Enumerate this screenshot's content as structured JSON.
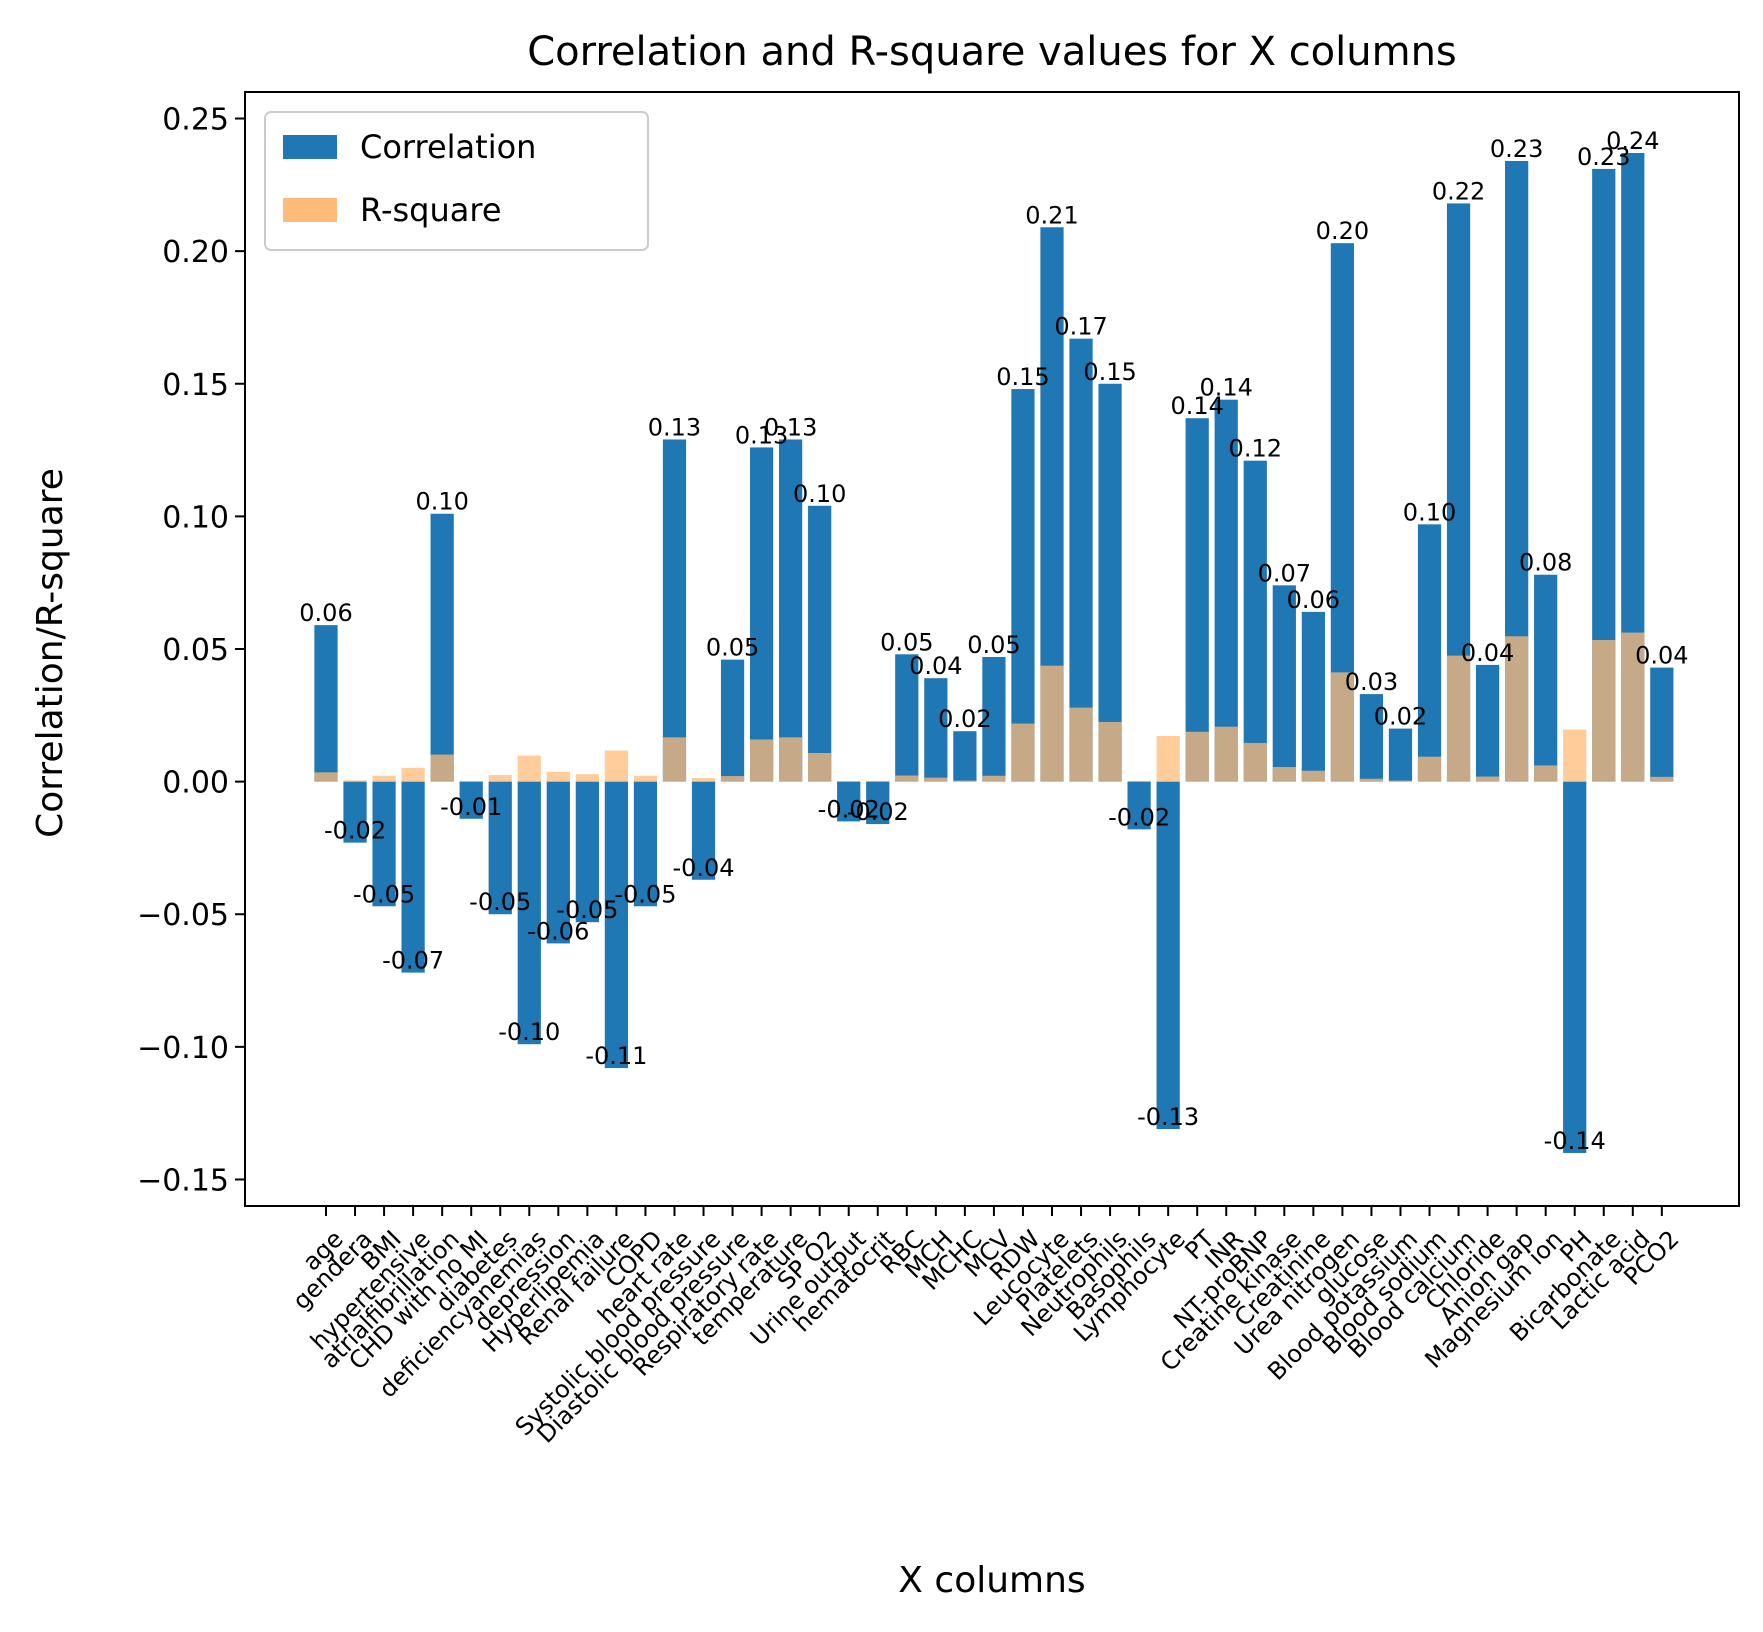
{
  "chart_data": {
    "type": "bar",
    "title": "Correlation and R-square values for X columns",
    "xlabel": "X columns",
    "ylabel": "Correlation/R-square",
    "ylim": [
      -0.16,
      0.26
    ],
    "yticks": [
      "0.25",
      "0.20",
      "0.15",
      "0.10",
      "0.05",
      "0.00",
      "−0.05",
      "−0.10",
      "−0.15"
    ],
    "ytick_values": [
      0.25,
      0.2,
      0.15,
      0.1,
      0.05,
      0.0,
      -0.05,
      -0.1,
      -0.15
    ],
    "legend_position": "top-left",
    "grid": false,
    "categories": [
      "age",
      "gendera",
      "BMI",
      "hypertensive",
      "atrialfibrillation",
      "CHD with no MI",
      "diabetes",
      "deficiencyanemias",
      "depression",
      "Hyperlipemia",
      "Renal failure",
      "COPD",
      "heart rate",
      "Systolic blood pressure",
      "Diastolic blood pressure",
      "Respiratory rate",
      "temperature",
      "SP O2",
      "Urine output",
      "hematocrit",
      "RBC",
      "MCH",
      "MCHC",
      "MCV",
      "RDW",
      "Leucocyte",
      "Platelets",
      "Neutrophils",
      "Basophils",
      "Lymphocyte",
      "PT",
      "INR",
      "NT-proBNP",
      "Creatine kinase",
      "Creatinine",
      "Urea nitrogen",
      "glucose",
      "Blood potassium",
      "Blood sodium",
      "Blood calcium",
      "Chloride",
      "Anion gap",
      "Magnesium ion",
      "PH",
      "Bicarbonate",
      "Lactic acid",
      "PCO2"
    ],
    "series": [
      {
        "name": "Correlation",
        "color": "#1f77b4",
        "values": [
          0.059,
          -0.023,
          -0.047,
          -0.072,
          0.101,
          -0.014,
          -0.05,
          -0.099,
          -0.061,
          -0.053,
          -0.108,
          -0.047,
          0.129,
          -0.037,
          0.046,
          0.126,
          0.129,
          0.104,
          -0.015,
          -0.016,
          0.048,
          0.039,
          0.019,
          0.047,
          0.148,
          0.209,
          0.167,
          0.15,
          -0.018,
          -0.131,
          0.137,
          0.144,
          0.121,
          0.074,
          0.064,
          0.203,
          0.033,
          0.02,
          0.097,
          0.218,
          0.044,
          0.234,
          0.078,
          -0.14,
          0.231,
          0.237,
          0.043
        ],
        "labels": [
          "0.06",
          "-0.02",
          "-0.05",
          "-0.07",
          "0.10",
          "-0.01",
          "-0.05",
          "-0.10",
          "-0.06",
          "-0.05",
          "-0.11",
          "-0.05",
          "0.13",
          "-0.04",
          "0.05",
          "0.13",
          "0.13",
          "0.10",
          "-0.02",
          "-0.02",
          "0.05",
          "0.04",
          "0.02",
          "0.05",
          "0.15",
          "0.21",
          "0.17",
          "0.15",
          "-0.02",
          "-0.13",
          "0.14",
          "0.14",
          "0.12",
          "0.07",
          "0.06",
          "0.20",
          "0.03",
          "0.02",
          "0.10",
          "0.22",
          "0.04",
          "0.23",
          "0.08",
          "-0.14",
          "0.23",
          "0.24",
          "0.04"
        ]
      },
      {
        "name": "R-square",
        "color": "#ffbb78",
        "values": [
          0.0035,
          0.0005,
          0.0022,
          0.0052,
          0.0102,
          0.0002,
          0.0025,
          0.0098,
          0.0037,
          0.0028,
          0.0117,
          0.0022,
          0.0167,
          0.0014,
          0.0021,
          0.0159,
          0.0167,
          0.0108,
          0.0002,
          0.0003,
          0.0023,
          0.0015,
          0.0004,
          0.0022,
          0.0219,
          0.0437,
          0.0279,
          0.0225,
          0.0003,
          0.0172,
          0.0188,
          0.0207,
          0.0146,
          0.0055,
          0.0041,
          0.0412,
          0.0011,
          0.0004,
          0.0094,
          0.0475,
          0.0019,
          0.0548,
          0.0061,
          0.0196,
          0.0534,
          0.0562,
          0.0018
        ]
      }
    ]
  }
}
